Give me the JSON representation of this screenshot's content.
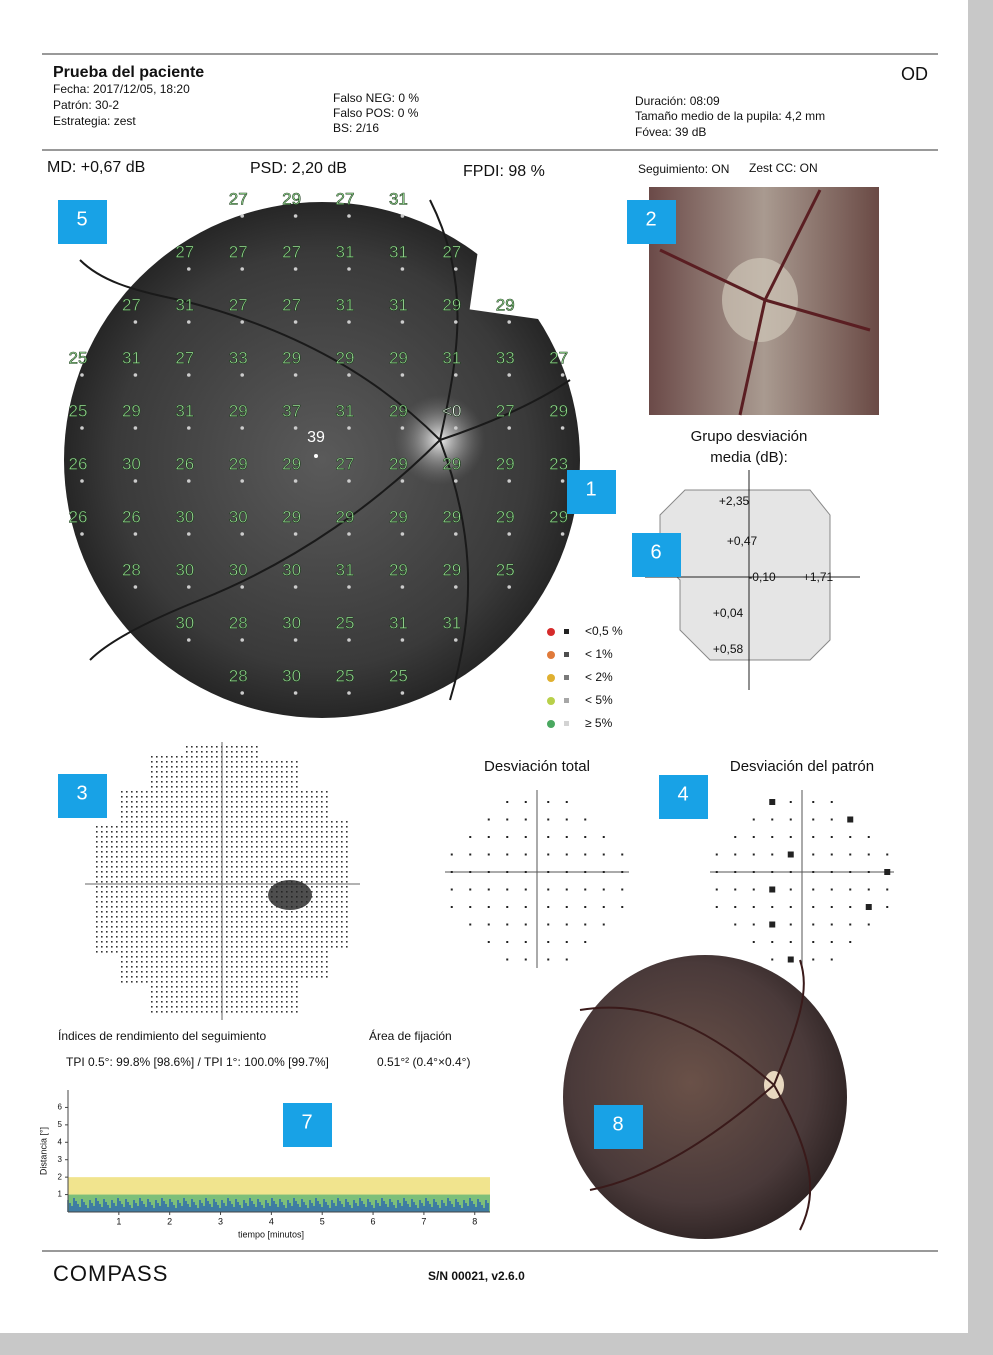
{
  "header": {
    "title": "Prueba del paciente",
    "fecha": "Fecha: 2017/12/05, 18:20",
    "patron": "Patrón: 30-2",
    "estrategia": "Estrategia: zest",
    "falso_neg": "Falso NEG: 0 %",
    "falso_pos": "Falso POS: 0 %",
    "bs": "BS: 2/16",
    "duracion": "Duración: 08:09",
    "pupila": "Tamaño medio de la pupila: 4,2 mm",
    "fovea": "Fóvea: 39 dB",
    "eye": "OD"
  },
  "indices": {
    "md": "MD: +0,67 dB",
    "psd": "PSD: 2,20 dB",
    "fpdi": "FPDI: 98 %",
    "seguimiento": "Seguimiento: ON",
    "zest": "Zest CC: ON"
  },
  "badges": [
    "1",
    "2",
    "3",
    "4",
    "5",
    "6",
    "7",
    "8"
  ],
  "threshold_grid": {
    "fovea_value": 39,
    "rows": [
      [
        null,
        null,
        null,
        27,
        29,
        27,
        31,
        null,
        null,
        null
      ],
      [
        null,
        null,
        27,
        27,
        27,
        31,
        31,
        27,
        null,
        null
      ],
      [
        null,
        27,
        31,
        27,
        27,
        31,
        31,
        29,
        29,
        null
      ],
      [
        25,
        31,
        27,
        33,
        29,
        29,
        29,
        31,
        33,
        27
      ],
      [
        25,
        29,
        31,
        29,
        37,
        31,
        29,
        "<0",
        27,
        29
      ],
      [
        26,
        30,
        26,
        29,
        29,
        27,
        29,
        29,
        29,
        23
      ],
      [
        26,
        26,
        30,
        30,
        29,
        29,
        29,
        29,
        29,
        29
      ],
      [
        null,
        28,
        30,
        30,
        30,
        31,
        29,
        29,
        25,
        null
      ],
      [
        null,
        null,
        30,
        28,
        30,
        25,
        31,
        31,
        null,
        null
      ],
      [
        null,
        null,
        null,
        28,
        30,
        25,
        25,
        null,
        null,
        null
      ]
    ]
  },
  "legend": [
    "<0,5 %",
    "< 1%",
    "< 2%",
    "< 5%",
    "≥ 5%"
  ],
  "group_deviation": {
    "title_1": "Grupo desviación",
    "title_2": "media (dB):",
    "values": [
      "+2,35",
      "+0,47",
      "-0,10",
      "+1,71",
      "+0,04",
      "+0,58"
    ]
  },
  "total_deviation_title": "Desviación total",
  "pattern_deviation_title": "Desviación del patrón",
  "tracking": {
    "title": "Índices de rendimiento del seguimiento",
    "tpi": "TPI 0.5°: 99.8% [98.6%] / TPI 1°: 100.0% [99.7%]",
    "fixation_title": "Área de fijación",
    "fixation_value": "0.51°² (0.4°×0.4°)",
    "plot": {
      "ylabel": "Distancia [°]",
      "xlabel": "tiempo [minutos]",
      "xlim": [
        0,
        8.3
      ],
      "ylim": [
        0,
        7
      ],
      "xticks": [
        1,
        2,
        3,
        4,
        5,
        6,
        7,
        8
      ],
      "yticks": [
        1,
        2,
        3,
        4,
        5,
        6
      ],
      "bands": [
        {
          "upper": 2,
          "color": "#f1e48e"
        },
        {
          "upper": 1,
          "color": "#7dbf7a"
        }
      ]
    }
  },
  "footer": {
    "brand": "COMPASS",
    "serial": "S/N 00021, v2.6.0"
  }
}
